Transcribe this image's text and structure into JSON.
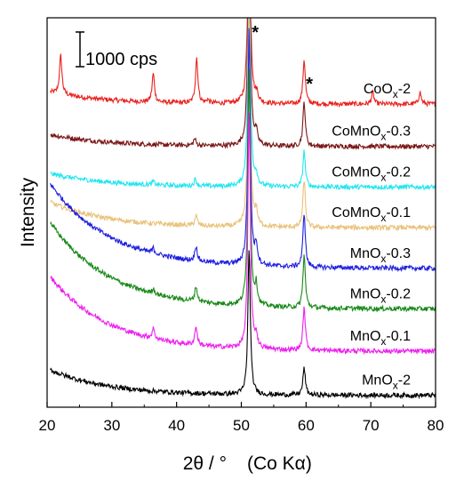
{
  "chart_data": {
    "type": "line",
    "xlabel_main": "2θ / °",
    "xlabel_unit": "(Co Kα)",
    "ylabel": "Intensity",
    "xlim": [
      20,
      80
    ],
    "xticks": [
      20,
      30,
      40,
      50,
      60,
      70,
      80
    ],
    "scale_bar_label": "1000 cps",
    "star_positions": [
      51.6,
      60.0
    ],
    "series": [
      {
        "name": "CoOx-2",
        "label_main": "CoO",
        "label_sub": "x",
        "label_suffix": "-2",
        "color": "#e8231f",
        "offset": 8.6,
        "start": 0.35,
        "bgtail": 0.0,
        "peaks": [
          [
            22.1,
            1.15
          ],
          [
            36.4,
            0.85
          ],
          [
            43.1,
            1.35
          ],
          [
            44.8,
            0.1
          ],
          [
            51.2,
            7.0
          ],
          [
            52.4,
            0.25
          ],
          [
            59.7,
            1.3
          ],
          [
            70.3,
            0.35
          ],
          [
            77.6,
            0.35
          ]
        ]
      },
      {
        "name": "CoMnOx-0.3",
        "label_main": "CoMnO",
        "label_sub": "x",
        "label_suffix": "-0.3",
        "color": "#7a1616",
        "offset": 7.35,
        "start": 0.35,
        "bgtail": 0.0,
        "peaks": [
          [
            42.8,
            0.2
          ],
          [
            51.2,
            7.0
          ],
          [
            52.3,
            0.35
          ],
          [
            59.7,
            1.3
          ]
        ]
      },
      {
        "name": "CoMnOx-0.2",
        "label_main": "CoMnO",
        "label_sub": "x",
        "label_suffix": "-0.2",
        "color": "#22e6f0",
        "offset": 6.15,
        "start": 0.4,
        "bgtail": 0.0,
        "peaks": [
          [
            36.4,
            0.1
          ],
          [
            42.9,
            0.2
          ],
          [
            51.2,
            7.0
          ],
          [
            52.3,
            0.3
          ],
          [
            59.7,
            1.05
          ]
        ]
      },
      {
        "name": "CoMnOx-0.1",
        "label_main": "CoMnO",
        "label_sub": "x",
        "label_suffix": "-0.1",
        "color": "#e9c27b",
        "offset": 4.95,
        "start": 0.75,
        "bgtail": 0.0,
        "peaks": [
          [
            43.0,
            0.3
          ],
          [
            51.2,
            7.0
          ],
          [
            52.3,
            0.4
          ],
          [
            59.7,
            1.4
          ]
        ]
      },
      {
        "name": "MnOx-0.3",
        "label_main": "MnO",
        "label_sub": "x",
        "label_suffix": "-0.3",
        "color": "#1f1fe0",
        "offset": 3.75,
        "start": 1.8,
        "bgtail": 0.1,
        "peaks": [
          [
            36.4,
            0.15
          ],
          [
            43.0,
            0.45
          ],
          [
            51.2,
            7.0
          ],
          [
            52.3,
            0.55
          ],
          [
            59.7,
            1.6
          ]
        ]
      },
      {
        "name": "MnOx-0.2",
        "label_main": "MnO",
        "label_sub": "x",
        "label_suffix": "-0.2",
        "color": "#1a8a1a",
        "offset": 2.55,
        "start": 1.85,
        "bgtail": 0.1,
        "peaks": [
          [
            36.4,
            0.15
          ],
          [
            43.0,
            0.45
          ],
          [
            51.2,
            7.0
          ],
          [
            52.3,
            0.55
          ],
          [
            59.7,
            1.55
          ]
        ]
      },
      {
        "name": "MnOx-0.1",
        "label_main": "MnO",
        "label_sub": "x",
        "label_suffix": "-0.1",
        "color": "#ee20ee",
        "offset": 1.3,
        "start": 1.85,
        "bgtail": 0.05,
        "peaks": [
          [
            36.4,
            0.3
          ],
          [
            43.0,
            0.55
          ],
          [
            51.2,
            7.0
          ],
          [
            52.3,
            0.35
          ],
          [
            59.7,
            1.25
          ]
        ]
      },
      {
        "name": "MnOx-2",
        "label_main": "MnO",
        "label_sub": "x",
        "label_suffix": "-2",
        "color": "#000000",
        "offset": 0.0,
        "start": 0.75,
        "bgtail": 0.0,
        "peaks": [
          [
            51.2,
            4.3
          ],
          [
            59.7,
            0.8
          ]
        ]
      }
    ]
  }
}
